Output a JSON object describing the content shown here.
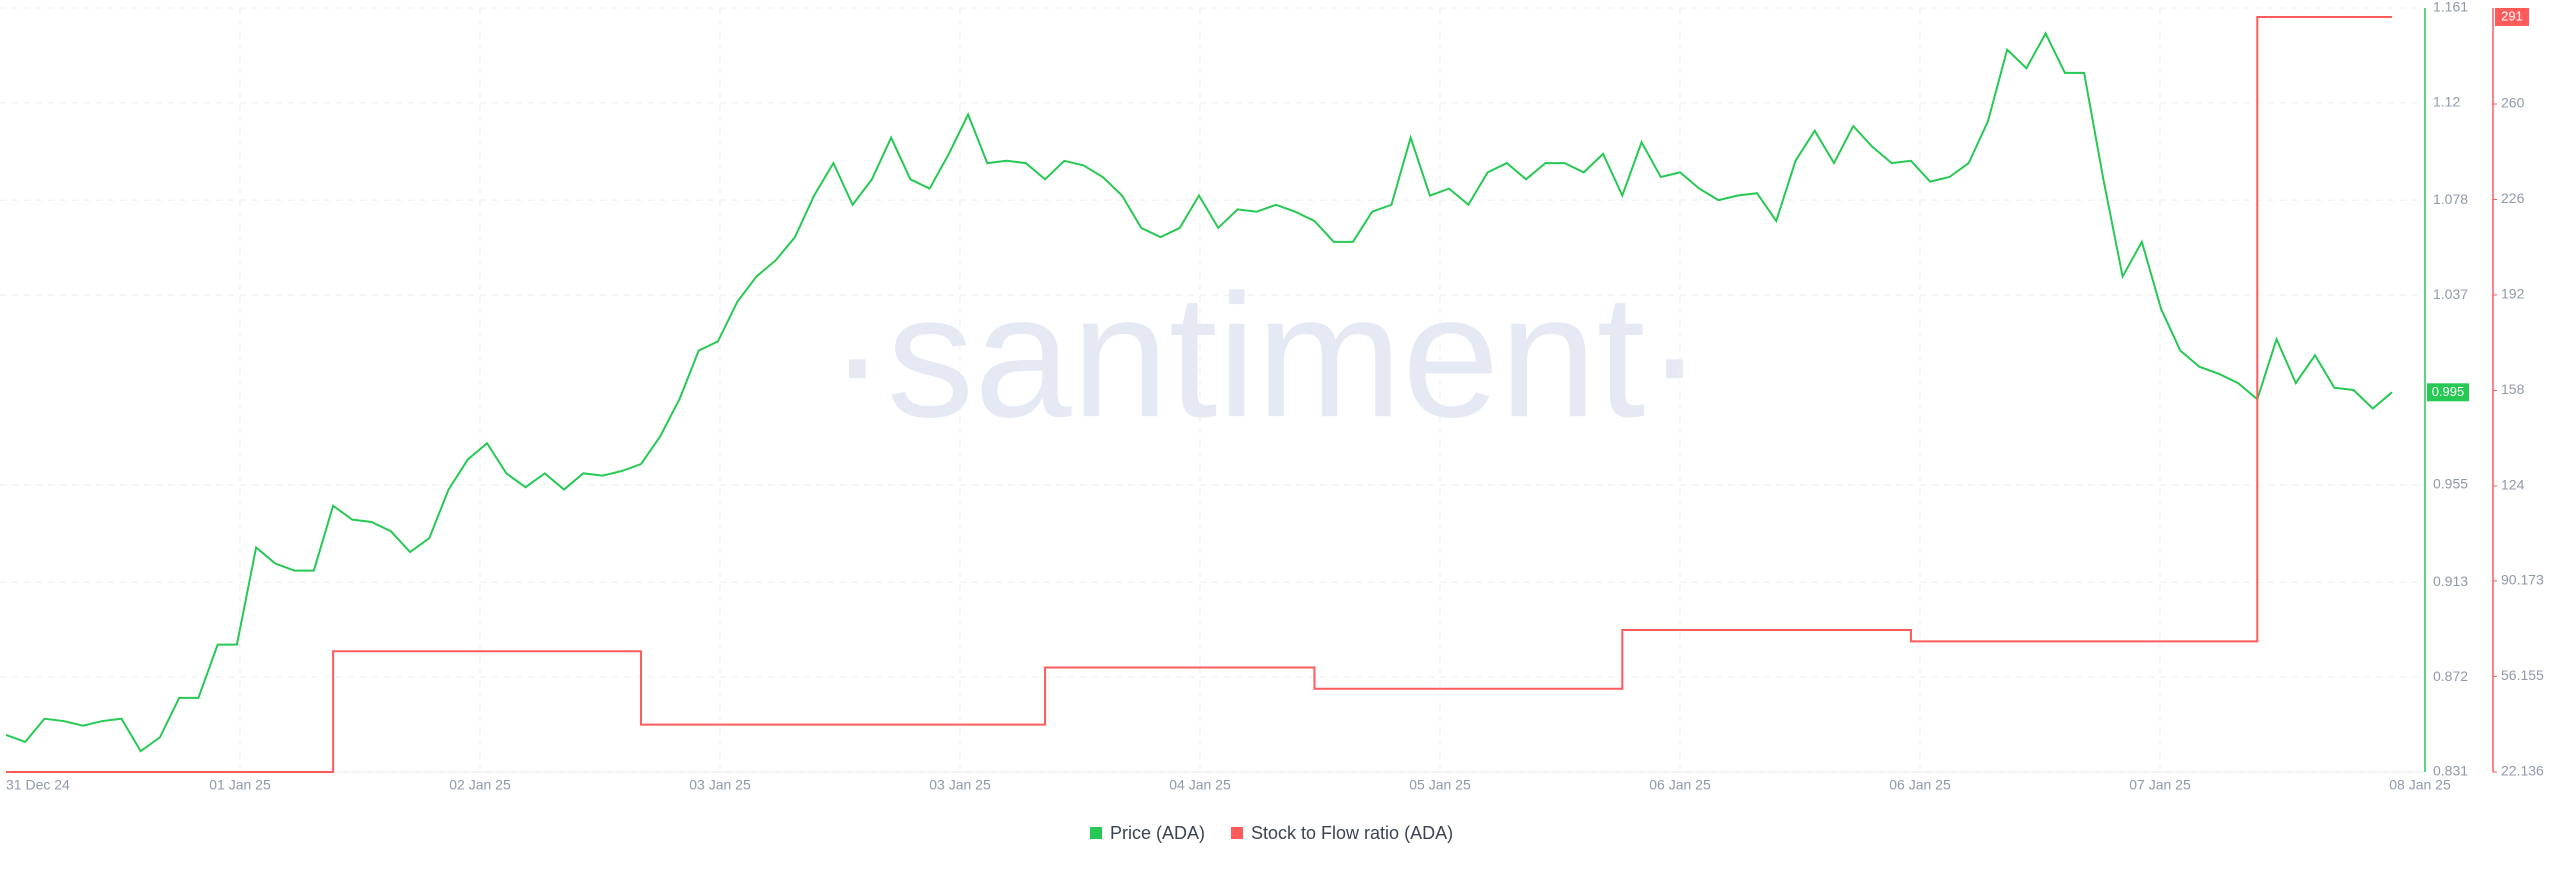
{
  "chart_data": {
    "type": "line",
    "watermark": "·santiment·",
    "xticks": [
      "31 Dec 24",
      "01 Jan 25",
      "02 Jan 25",
      "03 Jan 25",
      "03 Jan 25",
      "04 Jan 25",
      "05 Jan 25",
      "06 Jan 25",
      "06 Jan 25",
      "07 Jan 25",
      "08 Jan 25"
    ],
    "ylim": [
      0.831,
      1.161
    ],
    "yticks": [
      0.831,
      0.872,
      0.913,
      0.955,
      1.037,
      1.078,
      1.12,
      1.161
    ],
    "y2lim": [
      22.136,
      294.19
    ],
    "y2ticks": [
      22.136,
      56.155,
      90.173,
      124,
      158,
      192,
      226,
      260
    ],
    "grid": true,
    "series": [
      {
        "name": "Price (ADA)",
        "color": "#26c953",
        "values": [
          0.847,
          0.844,
          0.854,
          0.853,
          0.851,
          0.853,
          0.854,
          0.84,
          0.846,
          0.863,
          0.863,
          0.886,
          0.886,
          0.928,
          0.921,
          0.918,
          0.918,
          0.946,
          0.94,
          0.939,
          0.935,
          0.926,
          0.932,
          0.953,
          0.966,
          0.973,
          0.96,
          0.954,
          0.96,
          0.953,
          0.96,
          0.959,
          0.961,
          0.964,
          0.976,
          0.992,
          1.013,
          1.017,
          1.034,
          1.045,
          1.052,
          1.062,
          1.08,
          1.094,
          1.076,
          1.087,
          1.105,
          1.087,
          1.083,
          1.098,
          1.115,
          1.094,
          1.095,
          1.094,
          1.087,
          1.095,
          1.093,
          1.088,
          1.08,
          1.066,
          1.062,
          1.066,
          1.08,
          1.066,
          1.074,
          1.073,
          1.076,
          1.073,
          1.069,
          1.06,
          1.06,
          1.073,
          1.076,
          1.105,
          1.08,
          1.083,
          1.076,
          1.09,
          1.094,
          1.087,
          1.094,
          1.094,
          1.09,
          1.098,
          1.08,
          1.103,
          1.088,
          1.09,
          1.083,
          1.078,
          1.08,
          1.081,
          1.069,
          1.095,
          1.108,
          1.094,
          1.11,
          1.101,
          1.094,
          1.095,
          1.086,
          1.088,
          1.094,
          1.112,
          1.143,
          1.135,
          1.15,
          1.133,
          1.133,
          1.087,
          1.045,
          1.06,
          1.031,
          1.013,
          1.006,
          1.003,
          0.999,
          0.992,
          1.018,
          0.999,
          1.011,
          0.997,
          0.996,
          0.988,
          0.995
        ]
      },
      {
        "name": "Stock to Flow ratio (ADA)",
        "color": "#ff5b5b",
        "axis": "y2",
        "step": true,
        "values": [
          22.136,
          22.136,
          22.136,
          22.136,
          22.136,
          22.136,
          22.136,
          22.136,
          22.136,
          22.136,
          22.136,
          22.136,
          22.136,
          22.136,
          22.136,
          22.136,
          22.136,
          65.15,
          65.15,
          65.15,
          65.15,
          65.15,
          65.15,
          65.15,
          65.15,
          65.15,
          65.15,
          65.15,
          65.15,
          65.15,
          65.15,
          65.15,
          65.15,
          38.99,
          38.99,
          38.99,
          38.99,
          38.99,
          38.99,
          38.99,
          38.99,
          38.99,
          38.99,
          38.99,
          38.99,
          38.99,
          38.99,
          38.99,
          38.99,
          38.99,
          38.99,
          38.99,
          38.99,
          38.99,
          59.34,
          59.34,
          59.34,
          59.34,
          59.34,
          59.34,
          59.34,
          59.34,
          59.34,
          59.34,
          59.34,
          59.34,
          59.34,
          59.34,
          51.78,
          51.78,
          51.78,
          51.78,
          51.78,
          51.78,
          51.78,
          51.78,
          51.78,
          51.78,
          51.78,
          51.78,
          51.78,
          51.78,
          51.78,
          51.78,
          72.71,
          72.71,
          72.71,
          72.71,
          72.71,
          72.71,
          72.71,
          72.71,
          72.71,
          72.71,
          72.71,
          72.71,
          72.71,
          72.71,
          72.71,
          68.64,
          68.64,
          68.64,
          68.64,
          68.64,
          68.64,
          68.64,
          68.64,
          68.64,
          68.64,
          68.64,
          68.64,
          68.64,
          68.64,
          68.64,
          68.64,
          68.64,
          68.64,
          291,
          291,
          291,
          291,
          291,
          291,
          291,
          291
        ]
      }
    ]
  }
}
